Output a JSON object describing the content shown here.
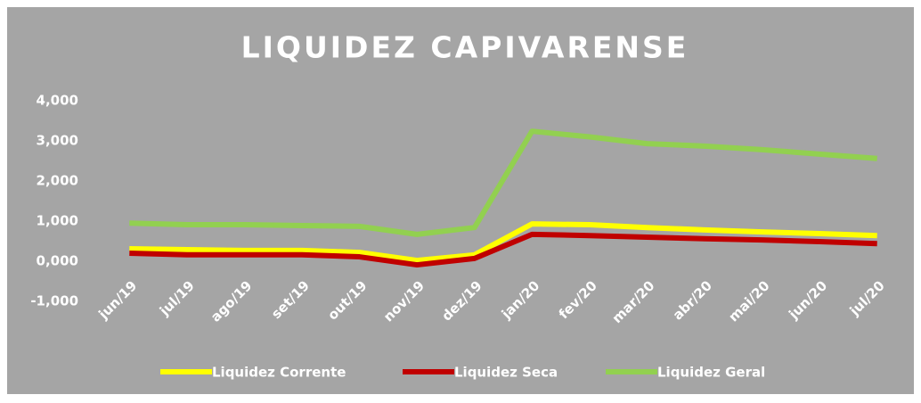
{
  "chart_data": {
    "type": "line",
    "title": "LIQUIDEZ CAPIVARENSE",
    "categories": [
      "jun/19",
      "jul/19",
      "ago/19",
      "set/19",
      "out/19",
      "nov/19",
      "dez/19",
      "jan/20",
      "fev/20",
      "mar/20",
      "abr/20",
      "mai/20",
      "jun/20",
      "jul/20"
    ],
    "series": [
      {
        "name": "Liquidez Corrente",
        "color": "#ffff00",
        "values": [
          0.31,
          0.29,
          0.27,
          0.27,
          0.22,
          0.02,
          0.16,
          0.93,
          0.91,
          0.84,
          0.78,
          0.73,
          0.69,
          0.64
        ]
      },
      {
        "name": "Liquidez Seca",
        "color": "#c00000",
        "values": [
          0.2,
          0.16,
          0.16,
          0.16,
          0.11,
          -0.09,
          0.07,
          0.67,
          0.64,
          0.6,
          0.56,
          0.53,
          0.49,
          0.44
        ]
      },
      {
        "name": "Liquidez Geral",
        "color": "#92d050",
        "values": [
          0.95,
          0.91,
          0.91,
          0.89,
          0.87,
          0.67,
          0.84,
          3.24,
          3.1,
          2.93,
          2.87,
          2.78,
          2.67,
          2.56
        ]
      }
    ],
    "ylim": [
      -1,
      4
    ],
    "yticks": [
      {
        "value": -1,
        "label": "-1,000"
      },
      {
        "value": 0,
        "label": "0,000"
      },
      {
        "value": 1,
        "label": "1,000"
      },
      {
        "value": 2,
        "label": "2,000"
      },
      {
        "value": 3,
        "label": "3,000"
      },
      {
        "value": 4,
        "label": "4,000"
      }
    ],
    "grid": false,
    "legend": "bottom"
  }
}
